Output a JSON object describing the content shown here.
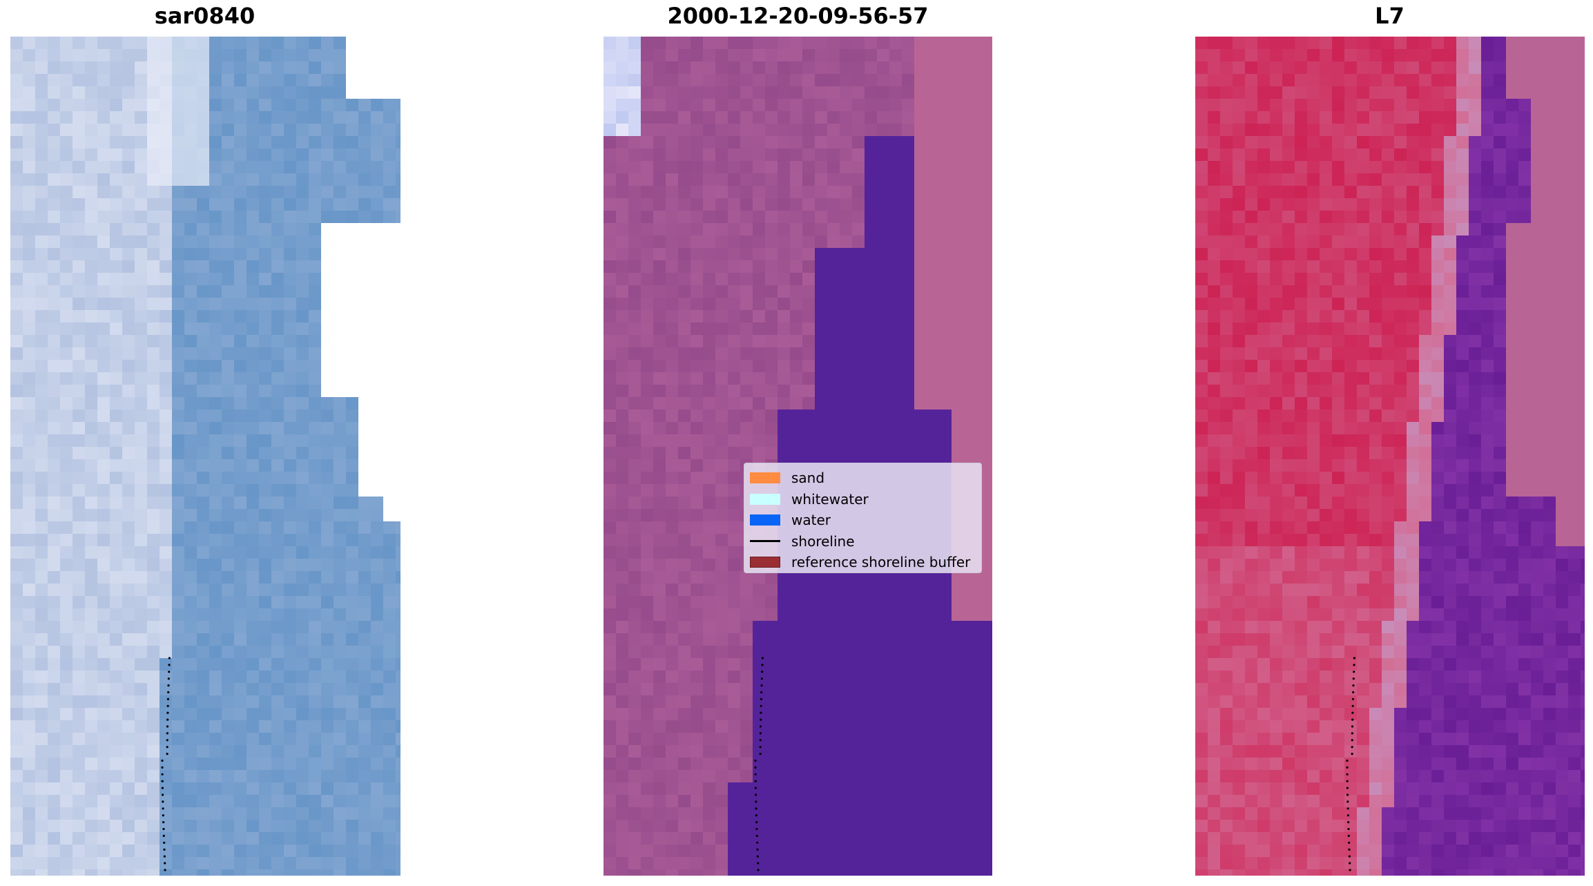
{
  "panels": [
    {
      "title": "sar0840",
      "palette": "blue-white"
    },
    {
      "title": "2000-12-20-09-56-57",
      "palette": "purple-classified"
    },
    {
      "title": "L7",
      "palette": "red-purple"
    }
  ],
  "legend": {
    "items": [
      {
        "label": "sand",
        "color": "#ff8c40",
        "kind": "patch"
      },
      {
        "label": "whitewater",
        "color": "#c8ffff",
        "kind": "patch"
      },
      {
        "label": "water",
        "color": "#0a64f5",
        "kind": "patch"
      },
      {
        "label": "shoreline",
        "color": "#000000",
        "kind": "line"
      },
      {
        "label": "reference shoreline buffer",
        "color": "#9b2d35",
        "kind": "patch"
      }
    ]
  },
  "colors": {
    "water_class": "#54239a",
    "nodata": "#b86596",
    "shoreline_dots": "#000000"
  }
}
